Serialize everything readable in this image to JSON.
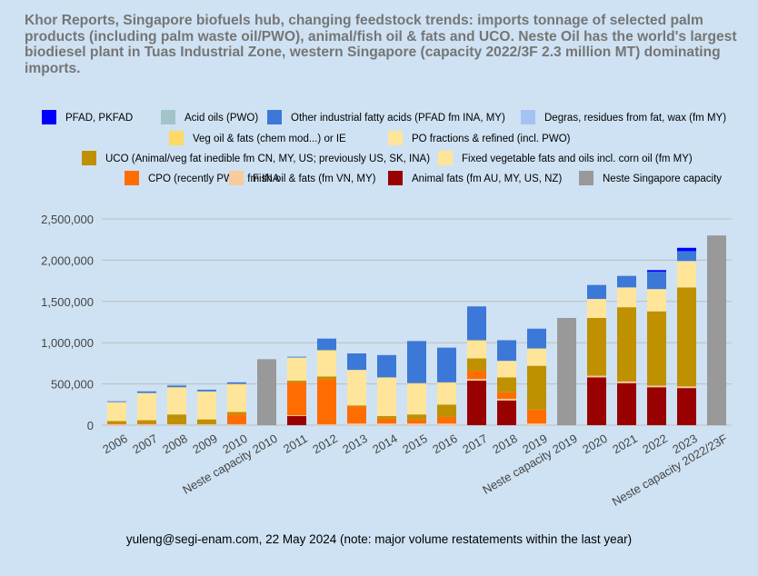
{
  "chart_data": {
    "type": "bar",
    "stacked": true,
    "title": "Khor Reports, Singapore biofuels hub, changing feedstock trends: imports tonnage of selected palm products (including palm waste oil/PWO), animal/fish oil & fats and UCO. Neste Oil has the world's largest biodiesel plant in Tuas Industrial Zone, western Singapore (capacity 2022/3F 2.3 million MT) dominating imports.",
    "footer": "yuleng@segi-enam.com, 22 May 2024 (note: major volume restatements within the last year)",
    "ylim": [
      0,
      2500000
    ],
    "yticks": [
      0,
      500000,
      1000000,
      1500000,
      2000000,
      2500000
    ],
    "ytick_labels": [
      "0",
      "500,000",
      "1,000,000",
      "1,500,000",
      "2,000,000",
      "2,500,000"
    ],
    "grid": true,
    "legend_position": "top",
    "categories": [
      "2006",
      "2007",
      "2008",
      "2009",
      "2010",
      "Neste capacity 2010",
      "2011",
      "2012",
      "2013",
      "2014",
      "2015",
      "2016",
      "2017",
      "2018",
      "2019",
      "Neste capacity 2019",
      "2020",
      "2021",
      "2022",
      "2023",
      "Neste capacity 2022/23F"
    ],
    "series": [
      {
        "name": "Animal fats (fm AU, MY, US, NZ)",
        "color": "#990000",
        "values": [
          0,
          0,
          0,
          0,
          0,
          0,
          110000,
          0,
          0,
          0,
          0,
          0,
          540000,
          300000,
          0,
          0,
          580000,
          510000,
          460000,
          450000,
          0
        ]
      },
      {
        "name": "Fish oil & fats (fm VN, MY)",
        "color": "#f9cb9c",
        "values": [
          10000,
          10000,
          10000,
          10000,
          10000,
          0,
          10000,
          10000,
          20000,
          20000,
          20000,
          20000,
          20000,
          20000,
          20000,
          0,
          20000,
          20000,
          20000,
          20000,
          0
        ]
      },
      {
        "name": "CPO (recently PWO, fm INA",
        "color": "#ff6d01",
        "values": [
          10000,
          10000,
          0,
          0,
          120000,
          0,
          400000,
          550000,
          210000,
          60000,
          50000,
          80000,
          100000,
          80000,
          170000,
          0,
          0,
          0,
          0,
          0,
          0
        ]
      },
      {
        "name": "UCO (Animal/veg fat inedible fm CN, MY, US; previously US, SK, INA)",
        "color": "#bf9000",
        "values": [
          30000,
          40000,
          120000,
          60000,
          30000,
          0,
          20000,
          30000,
          10000,
          30000,
          60000,
          150000,
          150000,
          180000,
          530000,
          0,
          700000,
          900000,
          900000,
          1200000,
          0
        ]
      },
      {
        "name": "Fixed vegetable fats and oils incl. corn oil (fm MY)",
        "color": "#ffe599",
        "values": [
          70000,
          80000,
          30000,
          20000,
          0,
          0,
          0,
          0,
          0,
          0,
          0,
          0,
          0,
          0,
          0,
          0,
          0,
          0,
          0,
          0,
          0
        ]
      },
      {
        "name": "PO fractions & refined (incl. PWO)",
        "color": "#ffe599",
        "values": [
          160000,
          250000,
          300000,
          320000,
          330000,
          0,
          280000,
          310000,
          430000,
          460000,
          370000,
          260000,
          210000,
          200000,
          210000,
          0,
          230000,
          240000,
          270000,
          320000,
          0
        ]
      },
      {
        "name": "Veg oil & fats (chem mod...) or IE",
        "color": "#ffd966",
        "values": [
          0,
          0,
          0,
          0,
          10000,
          0,
          0,
          10000,
          0,
          10000,
          10000,
          10000,
          10000,
          0,
          0,
          0,
          0,
          0,
          0,
          0,
          0
        ]
      },
      {
        "name": "Degras, residues from fat, wax (fm MY)",
        "color": "#a4c2f4",
        "values": [
          0,
          0,
          0,
          0,
          0,
          0,
          0,
          0,
          0,
          0,
          0,
          0,
          0,
          0,
          0,
          0,
          0,
          0,
          0,
          0,
          0
        ]
      },
      {
        "name": "Other industrial fatty acids (PFAD fm INA, MY)",
        "color": "#3c78d8",
        "values": [
          10000,
          20000,
          20000,
          20000,
          20000,
          0,
          10000,
          140000,
          200000,
          270000,
          510000,
          420000,
          410000,
          250000,
          240000,
          0,
          170000,
          140000,
          210000,
          120000,
          0
        ]
      },
      {
        "name": "Acid oils (PWO)",
        "color": "#a2c4c9",
        "values": [
          0,
          0,
          10000,
          0,
          0,
          0,
          0,
          0,
          0,
          0,
          0,
          0,
          0,
          0,
          0,
          0,
          0,
          0,
          0,
          0,
          0
        ]
      },
      {
        "name": "PFAD, PKFAD",
        "color": "#0000ff",
        "values": [
          0,
          0,
          0,
          0,
          0,
          0,
          0,
          0,
          0,
          0,
          0,
          0,
          0,
          0,
          0,
          0,
          0,
          0,
          20000,
          40000,
          0
        ]
      },
      {
        "name": "Neste Singapore capacity",
        "color": "#999999",
        "values": [
          0,
          0,
          0,
          0,
          0,
          800000,
          0,
          0,
          0,
          0,
          0,
          0,
          0,
          0,
          0,
          1300000,
          0,
          0,
          0,
          0,
          2300000
        ]
      }
    ],
    "legend_order": [
      10,
      9,
      8,
      7,
      6,
      5,
      3,
      4,
      2,
      1,
      0,
      11
    ]
  }
}
